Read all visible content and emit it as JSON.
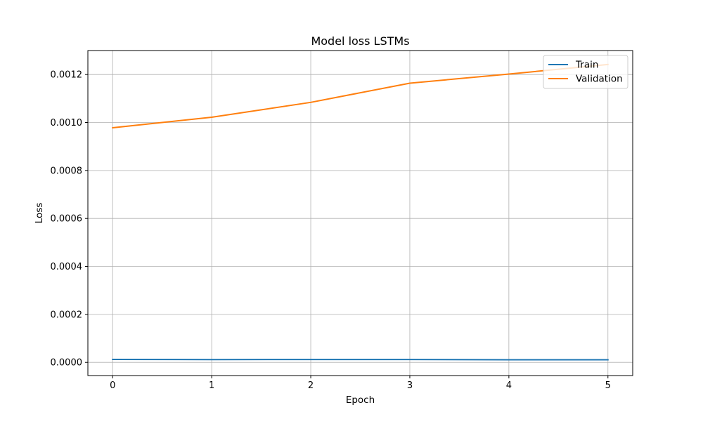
{
  "chart_data": {
    "type": "line",
    "title": "Model loss LSTMs",
    "xlabel": "Epoch",
    "ylabel": "Loss",
    "x": [
      0,
      1,
      2,
      3,
      4,
      5
    ],
    "xlim": [
      -0.25,
      5.25
    ],
    "ylim": [
      -5.5e-05,
      0.0013
    ],
    "xticks": [
      0,
      1,
      2,
      3,
      4,
      5
    ],
    "xtick_labels": [
      "0",
      "1",
      "2",
      "3",
      "4",
      "5"
    ],
    "yticks": [
      0,
      0.0002,
      0.0004,
      0.0006,
      0.0008,
      0.001,
      0.0012
    ],
    "ytick_labels": [
      "0.0000",
      "0.0002",
      "0.0004",
      "0.0006",
      "0.0008",
      "0.0010",
      "0.0012"
    ],
    "grid": true,
    "legend_position": "top-right",
    "series": [
      {
        "name": "Train",
        "color": "#1f77b4",
        "values": [
          1.25e-05,
          1.15e-05,
          1.2e-05,
          1.18e-05,
          1.08e-05,
          1.1e-05
        ]
      },
      {
        "name": "Validation",
        "color": "#ff7f0e",
        "values": [
          0.000978,
          0.001022,
          0.001084,
          0.001164,
          0.001202,
          0.001242
        ]
      }
    ]
  }
}
